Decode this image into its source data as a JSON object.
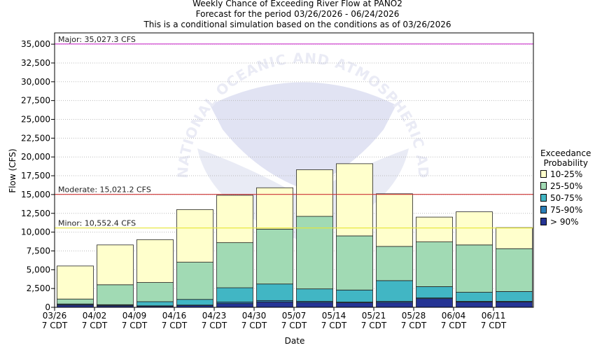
{
  "titles": {
    "line1": "Weekly Chance of Exceeding River Flow at PANO2",
    "line2": "Forecast for the period 03/26/2026 - 06/24/2026",
    "line3": "This is a conditional simulation based on the conditions as of 03/26/2026"
  },
  "watermark": "NATIONAL OCEANIC AND ATMOSPHERIC ADMINISTRATION NOAA",
  "legend": {
    "title_line1": "Exceedance",
    "title_line2": "Probability",
    "items": [
      {
        "label": "10-25%",
        "color": "#ffffcc"
      },
      {
        "label": "25-50%",
        "color": "#a1dab4"
      },
      {
        "label": "50-75%",
        "color": "#41b6c4"
      },
      {
        "label": "75-90%",
        "color": "#2c7fb8"
      },
      {
        "label": "> 90%",
        "color": "#253494"
      }
    ]
  },
  "chart_data": {
    "type": "bar",
    "stacked": true,
    "xlabel": "Date",
    "ylabel": "Flow (CFS)",
    "ylim": [
      0,
      36500
    ],
    "yticks": [
      0,
      2500,
      5000,
      7500,
      10000,
      12500,
      15000,
      17500,
      20000,
      22500,
      25000,
      27500,
      30000,
      32500,
      35000
    ],
    "ytick_labels": [
      "0",
      "2,500",
      "5,000",
      "7,500",
      "10,000",
      "12,500",
      "15,000",
      "17,500",
      "20,000",
      "22,500",
      "25,000",
      "27,500",
      "30,000",
      "32,500",
      "35,000"
    ],
    "categories": [
      "03/26 7 CDT",
      "04/02 7 CDT",
      "04/09 7 CDT",
      "04/16 7 CDT",
      "04/23 7 CDT",
      "04/30 7 CDT",
      "05/07 7 CDT",
      "05/14 7 CDT",
      "05/21 7 CDT",
      "05/28 7 CDT",
      "06/04 7 CDT",
      "06/11 7 CDT"
    ],
    "tick_labels": [
      [
        "03/26",
        "7 CDT"
      ],
      [
        "04/02",
        "7 CDT"
      ],
      [
        "04/09",
        "7 CDT"
      ],
      [
        "04/16",
        "7 CDT"
      ],
      [
        "04/23",
        "7 CDT"
      ],
      [
        "04/30",
        "7 CDT"
      ],
      [
        "05/07",
        "7 CDT"
      ],
      [
        "05/14",
        "7 CDT"
      ],
      [
        "05/21",
        "7 CDT"
      ],
      [
        "05/28",
        "7 CDT"
      ],
      [
        "06/04",
        "7 CDT"
      ],
      [
        "06/11",
        "7 CDT"
      ]
    ],
    "series": [
      {
        "name": "> 90%",
        "color": "#253494",
        "values": [
          300,
          200,
          150,
          250,
          500,
          700,
          650,
          600,
          650,
          1150,
          700,
          700
        ]
      },
      {
        "name": "75-90%",
        "color": "#2c7fb8",
        "values": [
          350,
          300,
          200,
          300,
          700,
          900,
          800,
          700,
          800,
          1250,
          800,
          800
        ]
      },
      {
        "name": "50-75%",
        "color": "#41b6c4",
        "values": [
          450,
          350,
          750,
          1050,
          2600,
          3100,
          2450,
          2300,
          3550,
          2750,
          2000,
          2100
        ]
      },
      {
        "name": "25-50%",
        "color": "#a1dab4",
        "values": [
          1100,
          3000,
          3300,
          6000,
          8600,
          10400,
          12100,
          9500,
          8100,
          8700,
          8300,
          7800
        ]
      },
      {
        "name": "10-25%",
        "color": "#ffffcc",
        "values": [
          5500,
          8300,
          9000,
          13000,
          14900,
          15900,
          18300,
          19100,
          15100,
          12000,
          12700,
          10600
        ]
      }
    ],
    "thresholds": [
      {
        "label": "Major: 35,027.3 CFS",
        "value": 35027.3,
        "color": "#cc33cc"
      },
      {
        "label": "Moderate: 15,021.2 CFS",
        "value": 15021.2,
        "color": "#cc3333"
      },
      {
        "label": "Minor: 10,552.4 CFS",
        "value": 10552.4,
        "color": "#e6e633"
      }
    ]
  }
}
